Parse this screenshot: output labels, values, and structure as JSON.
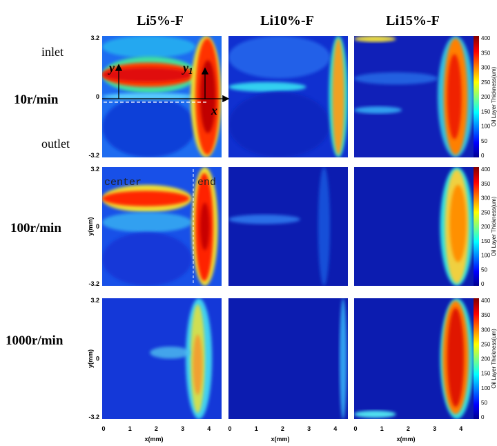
{
  "columns": [
    "Li5%-F",
    "Li10%-F",
    "Li15%-F"
  ],
  "rows": [
    "10r/min",
    "100r/min",
    "1000r/min"
  ],
  "y_axis": {
    "label": "y(mm)",
    "ticks": [
      "3.2",
      "0",
      "-3.2"
    ]
  },
  "x_axis": {
    "label": "x(mm)",
    "ticks": [
      "0",
      "1",
      "2",
      "3",
      "4"
    ]
  },
  "colorbar": {
    "label": "Oil Layer Thickness(um)",
    "ticks": [
      "0",
      "50",
      "100",
      "150",
      "200",
      "250",
      "300",
      "350",
      "400"
    ]
  },
  "annotations": {
    "inlet": "inlet",
    "outlet": "outlet",
    "y": "y",
    "y1": {
      "text": "y",
      "subscript": "1"
    },
    "x": "x",
    "center": "center",
    "end": "end"
  }
}
